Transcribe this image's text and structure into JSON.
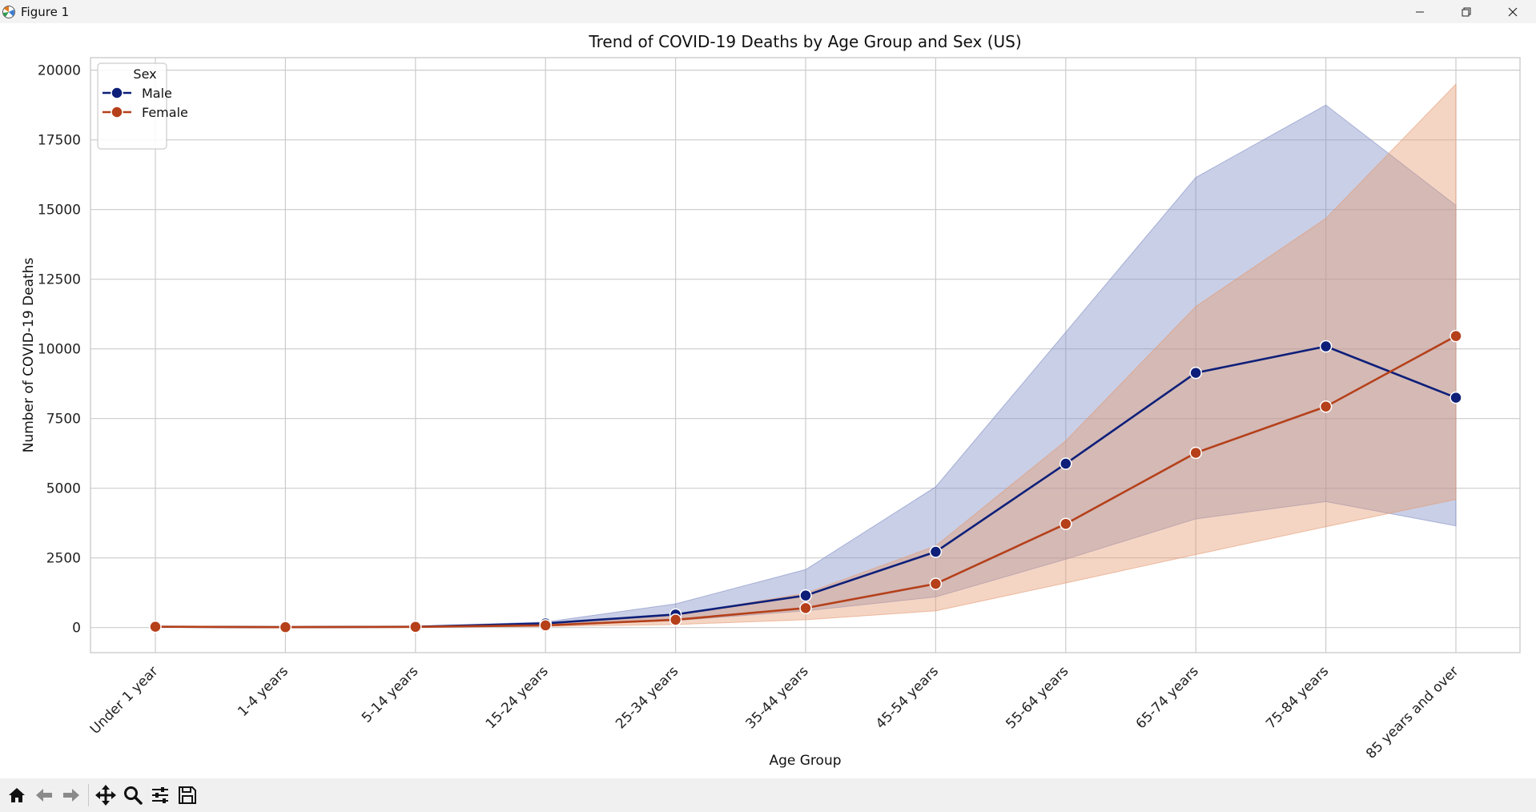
{
  "window": {
    "title": "Figure 1",
    "controls": [
      "minimize",
      "restore",
      "close"
    ]
  },
  "toolbar": {
    "buttons": [
      "home-icon",
      "back-icon",
      "forward-icon",
      "pan-icon",
      "zoom-icon",
      "configure-icon",
      "save-icon"
    ]
  },
  "chart_data": {
    "type": "line",
    "title": "Trend of COVID-19 Deaths by Age Group and Sex (US)",
    "xlabel": "Age Group",
    "ylabel": "Number of COVID-19 Deaths",
    "categories": [
      "Under 1 year",
      "1-4 years",
      "5-14 years",
      "15-24 years",
      "25-34 years",
      "35-44 years",
      "45-54 years",
      "55-64 years",
      "65-74 years",
      "75-84 years",
      "85 years and over"
    ],
    "ylim": [
      -900,
      20450
    ],
    "yticks": [
      0,
      2500,
      5000,
      7500,
      10000,
      12500,
      15000,
      17500,
      20000
    ],
    "grid": true,
    "legend": {
      "title": "Sex",
      "position": "top-left"
    },
    "series": [
      {
        "name": "Male",
        "color": "#0e1f79",
        "values": [
          30,
          15,
          30,
          150,
          470,
          1150,
          2720,
          5880,
          9140,
          10090,
          8250
        ],
        "ci_upper": [
          40,
          25,
          45,
          200,
          850,
          2080,
          5050,
          10600,
          16150,
          18750,
          15150
        ],
        "ci_lower": [
          20,
          10,
          20,
          90,
          250,
          600,
          1100,
          2450,
          3900,
          4520,
          3650
        ]
      },
      {
        "name": "Female",
        "color": "#b5401a",
        "values": [
          30,
          15,
          25,
          80,
          280,
          700,
          1570,
          3720,
          6270,
          7930,
          10460
        ],
        "ci_upper": [
          40,
          25,
          35,
          120,
          450,
          1230,
          2930,
          6700,
          11520,
          14680,
          19500
        ],
        "ci_lower": [
          20,
          10,
          15,
          40,
          110,
          280,
          600,
          1600,
          2620,
          3620,
          4600
        ]
      }
    ]
  }
}
